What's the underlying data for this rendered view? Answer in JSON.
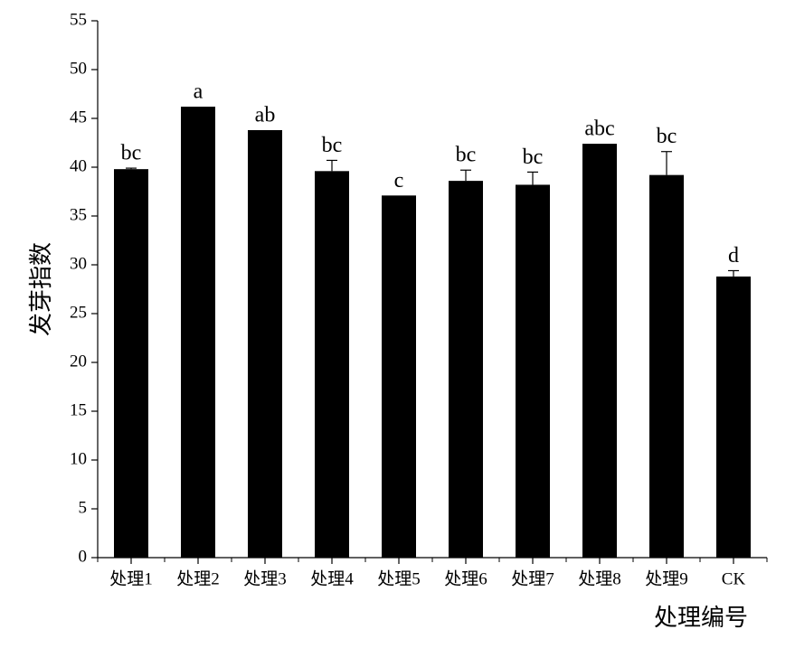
{
  "chart_data": {
    "type": "bar",
    "xlabel": "处理编号",
    "ylabel": "发芽指数",
    "categories": [
      "处理1",
      "处理2",
      "处理3",
      "处理4",
      "处理5",
      "处理6",
      "处理7",
      "处理8",
      "处理9",
      "CK"
    ],
    "values": [
      39.8,
      46.2,
      43.8,
      39.6,
      37.1,
      38.6,
      38.2,
      42.4,
      39.2,
      28.8
    ],
    "errors": [
      0.1,
      null,
      null,
      1.1,
      null,
      1.1,
      1.3,
      null,
      2.4,
      0.6
    ],
    "letters": [
      "bc",
      "a",
      "ab",
      "bc",
      "c",
      "bc",
      "bc",
      "abc",
      "bc",
      "d"
    ],
    "color": "#000000",
    "ylim": [
      0,
      55
    ],
    "yticks": [
      0,
      5,
      10,
      15,
      20,
      25,
      30,
      35,
      40,
      45,
      50,
      55
    ]
  }
}
